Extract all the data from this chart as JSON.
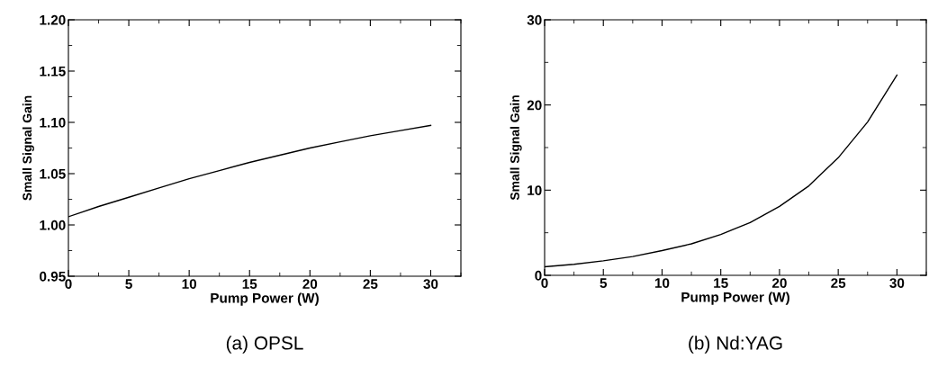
{
  "chart_data": [
    {
      "type": "line",
      "xlabel": "Pump Power (W)",
      "ylabel": "Small Signal Gain",
      "annotations": [
        "(a) OPSL"
      ],
      "x": [
        0,
        2.5,
        5,
        7.5,
        10,
        12.5,
        15,
        17.5,
        20,
        22.5,
        25,
        27.5,
        30
      ],
      "series": [
        {
          "color": "#000000",
          "values": [
            1.008,
            1.018,
            1.027,
            1.036,
            1.045,
            1.053,
            1.061,
            1.068,
            1.075,
            1.081,
            1.087,
            1.092,
            1.097
          ]
        }
      ],
      "xlim": [
        0,
        32.5
      ],
      "xticks": [
        0,
        5,
        10,
        15,
        20,
        25,
        30
      ],
      "ylim": [
        0.95,
        1.2
      ],
      "yticks": [
        {
          "value": 0.95,
          "label": "0.95"
        },
        {
          "value": 1.0,
          "label": "1.00"
        },
        {
          "value": 1.05,
          "label": "1.05"
        },
        {
          "value": 1.1,
          "label": "1.10"
        },
        {
          "value": 1.15,
          "label": "1.15"
        },
        {
          "value": 1.2,
          "label": "1.20"
        }
      ],
      "grid": false,
      "legend": false
    },
    {
      "type": "line",
      "xlabel": "Pump Power (W)",
      "ylabel": "Small Signal Gain",
      "annotations": [
        "(b) Nd:YAG"
      ],
      "x": [
        0,
        2.5,
        5,
        7.5,
        10,
        12.5,
        15,
        17.5,
        20,
        22.5,
        25,
        27.5,
        30
      ],
      "series": [
        {
          "color": "#000000",
          "values": [
            1.0,
            1.3,
            1.7,
            2.2,
            2.9,
            3.7,
            4.8,
            6.2,
            8.1,
            10.5,
            13.8,
            18.0,
            23.5
          ]
        }
      ],
      "xlim": [
        0,
        32.5
      ],
      "xticks": [
        0,
        5,
        10,
        15,
        20,
        25,
        30
      ],
      "ylim": [
        0,
        30
      ],
      "yticks": [
        0,
        10,
        20,
        30
      ],
      "grid": false,
      "legend": false
    }
  ]
}
